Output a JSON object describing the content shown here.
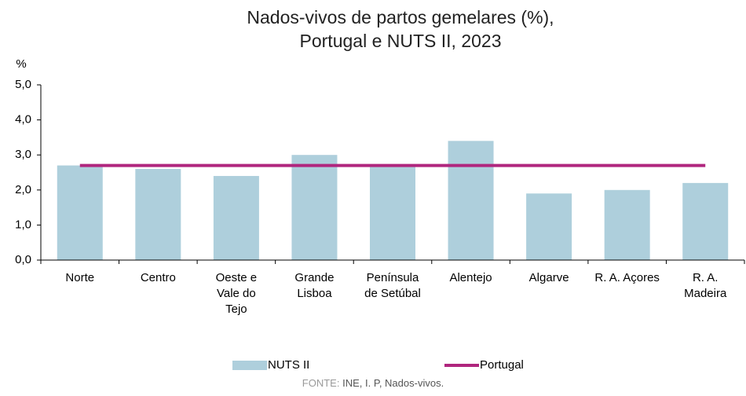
{
  "chart_data": {
    "type": "bar",
    "title": [
      "Nados-vivos de partos gemelares (%),",
      "Portugal e NUTS II, 2023"
    ],
    "y_label": "%",
    "categories": [
      "Norte",
      "Centro",
      "Oeste e Vale do Tejo",
      "Grande Lisboa",
      "Península de Setúbal",
      "Alentejo",
      "Algarve",
      "R. A. Açores",
      "R. A. Madeira"
    ],
    "series": [
      {
        "name": "NUTS II",
        "type": "bar",
        "color": "#aecfdc",
        "values": [
          2.7,
          2.6,
          2.4,
          3.0,
          2.7,
          3.4,
          1.9,
          2.0,
          2.2
        ]
      },
      {
        "name": "Portugal",
        "type": "line",
        "color": "#b0267e",
        "values": [
          2.7,
          2.7,
          2.7,
          2.7,
          2.7,
          2.7,
          2.7,
          2.7,
          2.7
        ]
      }
    ],
    "ylim": [
      0,
      5
    ],
    "yticks": [
      {
        "value": 0,
        "label": "0,0"
      },
      {
        "value": 1,
        "label": "1,0"
      },
      {
        "value": 2,
        "label": "2,0"
      },
      {
        "value": 3,
        "label": "3,0"
      },
      {
        "value": 4,
        "label": "4,0"
      },
      {
        "value": 5,
        "label": "5,0"
      }
    ],
    "legend": "bottom",
    "source_label": "FONTE:",
    "source": "INE, I. P, Nados-vivos."
  }
}
